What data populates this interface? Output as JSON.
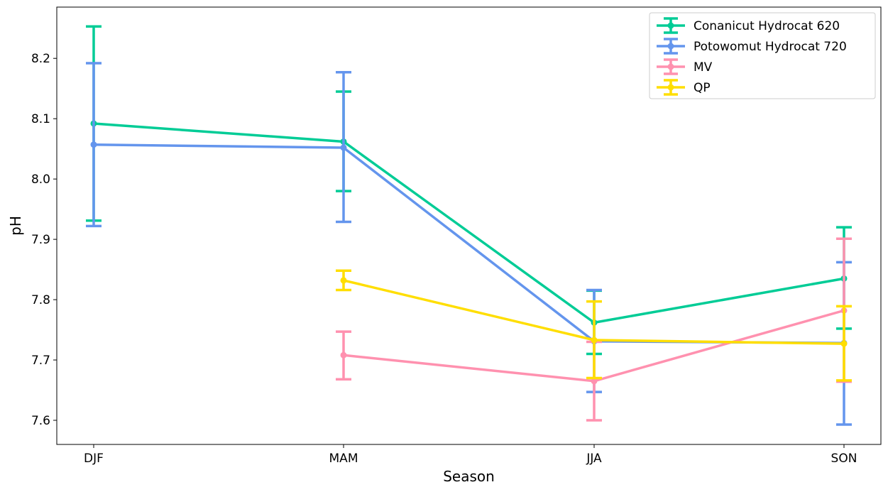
{
  "chart_data": {
    "type": "line",
    "title": "",
    "xlabel": "Season",
    "ylabel": "pH",
    "categories": [
      "DJF",
      "MAM",
      "JJA",
      "SON"
    ],
    "ylim": [
      7.56,
      8.285
    ],
    "yticks": [
      7.6,
      7.7,
      7.8,
      7.9,
      8.0,
      8.1,
      8.2
    ],
    "ytick_labels": [
      "7.6",
      "7.7",
      "7.8",
      "7.9",
      "8.0",
      "8.1",
      "8.2"
    ],
    "grid": false,
    "legend_position": "top-right",
    "error_bars": true,
    "series": [
      {
        "name": "Conanicut Hydrocat 620",
        "color": "#00CC96",
        "values": [
          8.092,
          8.062,
          7.762,
          7.835
        ],
        "err_low": [
          7.931,
          7.98,
          7.71,
          7.752
        ],
        "err_high": [
          8.253,
          8.145,
          7.815,
          7.92
        ]
      },
      {
        "name": "Potowomut Hydrocat 720",
        "color": "#6495ED",
        "values": [
          8.057,
          8.052,
          7.731,
          7.728
        ],
        "err_low": [
          7.922,
          7.929,
          7.647,
          7.593
        ],
        "err_high": [
          8.192,
          8.177,
          7.816,
          7.862
        ]
      },
      {
        "name": "MV",
        "color": "#FF91AF",
        "values": [
          null,
          7.708,
          7.665,
          7.782
        ],
        "err_low": [
          null,
          7.668,
          7.6,
          7.664
        ],
        "err_high": [
          null,
          7.747,
          7.73,
          7.901
        ]
      },
      {
        "name": "QP",
        "color": "#FFDE00",
        "values": [
          null,
          7.832,
          7.733,
          7.727
        ],
        "err_low": [
          null,
          7.816,
          7.67,
          7.666
        ],
        "err_high": [
          null,
          7.848,
          7.797,
          7.789
        ]
      }
    ]
  }
}
